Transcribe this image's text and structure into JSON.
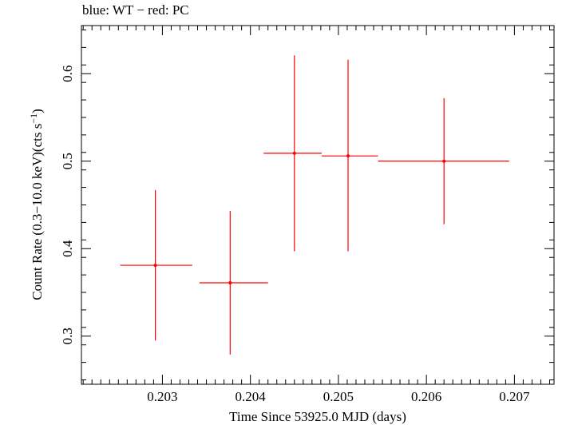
{
  "header": {
    "left": "blue: WT",
    "sep": " − ",
    "right": "red: PC"
  },
  "chart_data": {
    "type": "scatter",
    "xlabel": "Time Since 53925.0 MJD (days)",
    "ylabel_main": "Count Rate (0.3−10.0 keV)(cts s",
    "ylabel_sup": "−1",
    "ylabel_end": ")",
    "xlim": [
      0.20208,
      0.20745
    ],
    "ylim": [
      0.245,
      0.655
    ],
    "x_ticks": [
      0.203,
      0.204,
      0.205,
      0.206,
      0.207
    ],
    "x_tick_labels": [
      "0.203",
      "0.204",
      "0.205",
      "0.206",
      "0.207"
    ],
    "y_ticks": [
      0.3,
      0.4,
      0.5,
      0.6
    ],
    "y_tick_labels": [
      "0.3",
      "0.4",
      "0.5",
      "0.6"
    ],
    "grid": false,
    "series": [
      {
        "name": "PC",
        "color": "#ff0000",
        "points": [
          {
            "x": 0.20292,
            "xlo": 0.20252,
            "xhi": 0.20334,
            "y": 0.381,
            "ylo": 0.295,
            "yhi": 0.467
          },
          {
            "x": 0.20377,
            "xlo": 0.20342,
            "xhi": 0.2042,
            "y": 0.361,
            "ylo": 0.279,
            "yhi": 0.443
          },
          {
            "x": 0.2045,
            "xlo": 0.20415,
            "xhi": 0.20481,
            "y": 0.509,
            "ylo": 0.397,
            "yhi": 0.621
          },
          {
            "x": 0.20511,
            "xlo": 0.20481,
            "xhi": 0.20545,
            "y": 0.506,
            "ylo": 0.397,
            "yhi": 0.616
          },
          {
            "x": 0.2062,
            "xlo": 0.20545,
            "xhi": 0.20694,
            "y": 0.5,
            "ylo": 0.428,
            "yhi": 0.572
          }
        ]
      }
    ]
  }
}
